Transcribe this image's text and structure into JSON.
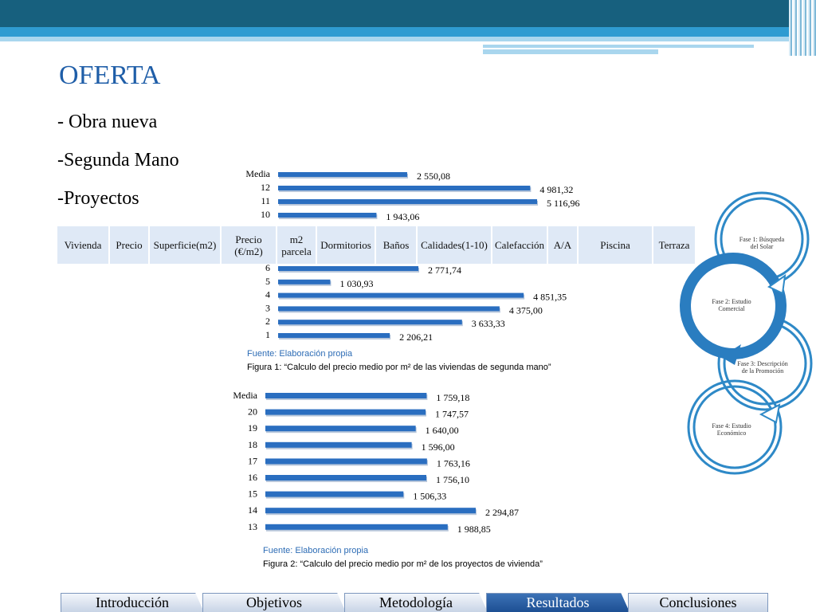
{
  "slide": {
    "title": "OFERTA",
    "bullets": [
      "- Obra nueva",
      "-Segunda Mano",
      "-Proyectos"
    ]
  },
  "table": {
    "headers": [
      "Vivienda",
      "Precio",
      "Superficie(m2)",
      "Precio (€/m2)",
      "m2 parcela",
      "Dormitorios",
      "Baños",
      "Calidades(1-10)",
      "Calefacción",
      "A/A",
      "Piscina",
      "Terraza"
    ]
  },
  "chart_data": [
    {
      "type": "bar",
      "orientation": "horizontal",
      "categories": [
        "Media",
        "12",
        "11",
        "10"
      ],
      "values": [
        2550.08,
        4981.32,
        5116.96,
        1943.06
      ],
      "value_labels": [
        "2 550,08",
        "4 981,32",
        "5 116,96",
        "1 943,06"
      ],
      "xlim": [
        0,
        6000
      ],
      "grid": false,
      "color": "#2a6ec0"
    },
    {
      "type": "bar",
      "orientation": "horizontal",
      "categories": [
        "6",
        "5",
        "4",
        "3",
        "2",
        "1"
      ],
      "values": [
        2771.74,
        1030.93,
        4851.35,
        4375.0,
        3633.33,
        2206.21
      ],
      "value_labels": [
        "2 771,74",
        "1 030,93",
        "4 851,35",
        "4 375,00",
        "3 633,33",
        "2 206,21"
      ],
      "xlim": [
        0,
        6000
      ],
      "grid": false,
      "color": "#2a6ec0",
      "source": "Fuente: Elaboración propia",
      "caption": "Figura 1: “Calculo del precio medio por m² de las viviendas de segunda mano”"
    },
    {
      "type": "bar",
      "orientation": "horizontal",
      "categories": [
        "Media",
        "20",
        "19",
        "18",
        "17",
        "16",
        "15",
        "14",
        "13"
      ],
      "values": [
        1759.18,
        1747.57,
        1640.0,
        1596.0,
        1763.16,
        1756.1,
        1506.33,
        2294.87,
        1988.85
      ],
      "value_labels": [
        "1 759,18",
        "1 747,57",
        "1 640,00",
        "1 596,00",
        "1 763,16",
        "1 756,10",
        "1 506,33",
        "2 294,87",
        "1 988,85"
      ],
      "xlim": [
        0,
        2600
      ],
      "grid": false,
      "color": "#2a6ec0",
      "source": "Fuente: Elaboración propia",
      "caption": "Figura 2: “Calculo del precio medio por m² de los proyectos de vivienda”"
    }
  ],
  "flow": {
    "steps": [
      [
        "Fase 1: Búsqueda",
        "del  Solar"
      ],
      [
        "Fase 2: Estudio",
        "Comercial"
      ],
      [
        "Fase 3: Descripción",
        "de la     Promoción"
      ],
      [
        "Fase 4: Estudio",
        "Económico"
      ]
    ],
    "colors": {
      "outline": "#2e89c7",
      "active": "#2a7dc0"
    }
  },
  "tabs": [
    {
      "label": "Introducción",
      "active": false
    },
    {
      "label": "Objetivos",
      "active": false
    },
    {
      "label": "Metodología",
      "active": false
    },
    {
      "label": "Resultados",
      "active": true
    },
    {
      "label": "Conclusiones",
      "active": false
    }
  ]
}
